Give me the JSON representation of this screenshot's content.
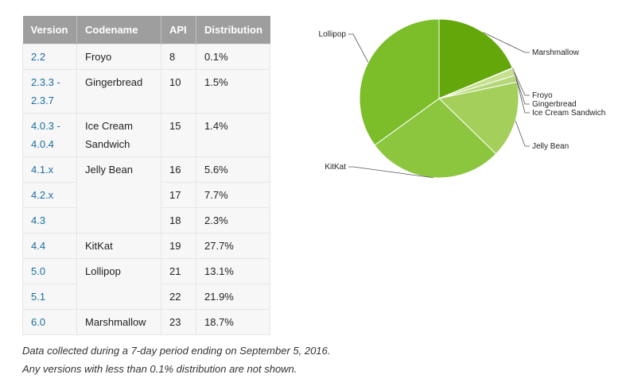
{
  "table": {
    "headers": [
      "Version",
      "Codename",
      "API",
      "Distribution"
    ],
    "rows": [
      {
        "version": "2.2",
        "codename": "Froyo",
        "api": "8",
        "dist": "0.1%"
      },
      {
        "version": "2.3.3 -\n2.3.7",
        "codename": "Gingerbread",
        "api": "10",
        "dist": "1.5%"
      },
      {
        "version": "4.0.3 -\n4.0.4",
        "codename": "Ice Cream\nSandwich",
        "api": "15",
        "dist": "1.4%"
      },
      {
        "version": "4.1.x",
        "codename": "Jelly Bean",
        "api": "16",
        "dist": "5.6%"
      },
      {
        "version": "4.2.x",
        "codename": "",
        "api": "17",
        "dist": "7.7%"
      },
      {
        "version": "4.3",
        "codename": "",
        "api": "18",
        "dist": "2.3%"
      },
      {
        "version": "4.4",
        "codename": "KitKat",
        "api": "19",
        "dist": "27.7%"
      },
      {
        "version": "5.0",
        "codename": "Lollipop",
        "api": "21",
        "dist": "13.1%"
      },
      {
        "version": "5.1",
        "codename": "",
        "api": "22",
        "dist": "21.9%"
      },
      {
        "version": "6.0",
        "codename": "Marshmallow",
        "api": "23",
        "dist": "18.7%"
      }
    ]
  },
  "notes": {
    "line1": "Data collected during a 7-day period ending on September 5, 2016.",
    "line2": "Any versions with less than 0.1% distribution are not shown."
  },
  "chart_data": {
    "type": "pie",
    "title": "",
    "labels": [
      "Marshmallow",
      "Froyo",
      "Gingerbread",
      "Ice Cream Sandwich",
      "Jelly Bean",
      "KitKat",
      "Lollipop"
    ],
    "values": [
      18.7,
      0.1,
      1.5,
      1.4,
      15.6,
      27.7,
      35.0
    ],
    "colors": [
      "#64a70b",
      "#d9eab4",
      "#c6e08e",
      "#b5d77a",
      "#a5cf5b",
      "#8cc63e",
      "#7cbd2a"
    ],
    "start_angle_deg": -90,
    "direction": "clockwise",
    "labels_outside": true
  }
}
